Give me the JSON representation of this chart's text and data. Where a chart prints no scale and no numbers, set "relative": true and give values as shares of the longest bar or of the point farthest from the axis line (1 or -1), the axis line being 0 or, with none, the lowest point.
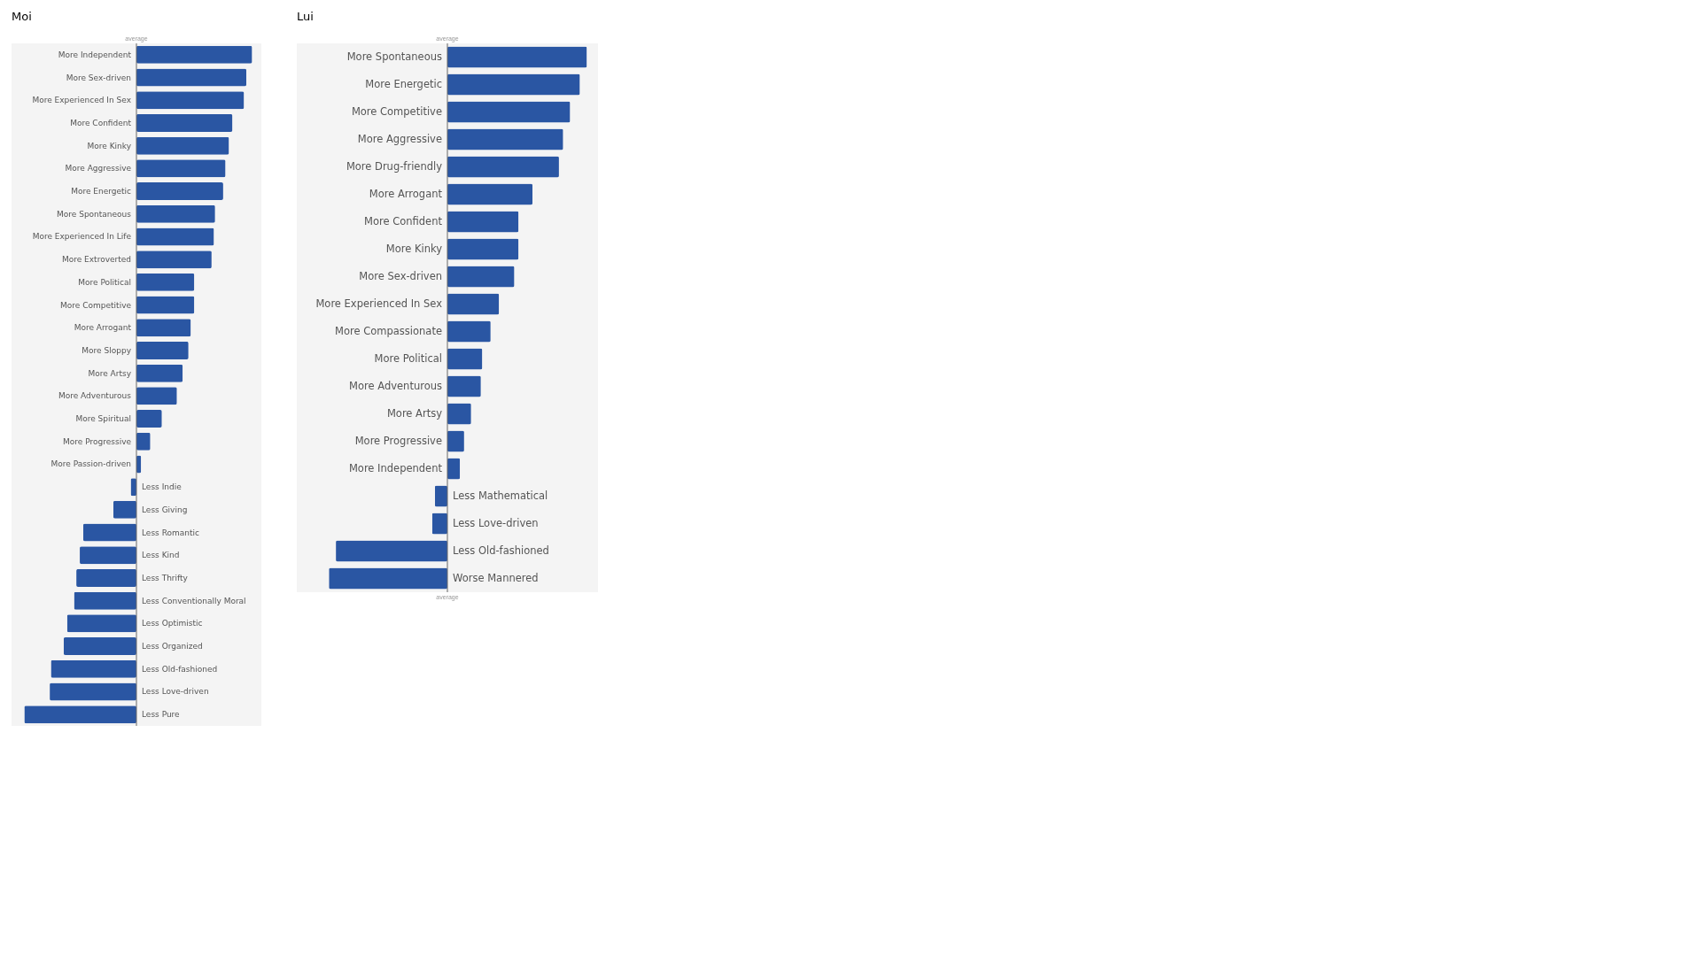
{
  "chart_data": [
    {
      "type": "bar",
      "orientation": "horizontal",
      "relative": true,
      "title": "Moi",
      "annotations": [
        "average"
      ],
      "categories": [
        "More Independent",
        "More Sex-driven",
        "More Experienced In Sex",
        "More Confident",
        "More Kinky",
        "More Aggressive",
        "More Energetic",
        "More Spontaneous",
        "More Experienced In Life",
        "More Extroverted",
        "More Political",
        "More Competitive",
        "More Arrogant",
        "More Sloppy",
        "More Artsy",
        "More Adventurous",
        "More Spiritual",
        "More Progressive",
        "More Passion-driven",
        "Less Indie",
        "Less Giving",
        "Less Romantic",
        "Less Kind",
        "Less Thrifty",
        "Less Conventionally Moral",
        "Less Optimistic",
        "Less Organized",
        "Less Old-fashioned",
        "Less Love-driven",
        "Less Pure"
      ],
      "series": [
        {
          "color": "#2a56a3",
          "values": [
            1,
            0.95,
            0.93,
            0.83,
            0.8,
            0.77,
            0.75,
            0.68,
            0.67,
            0.65,
            0.5,
            0.5,
            0.47,
            0.45,
            0.4,
            0.35,
            0.22,
            0.12,
            0.04,
            -0.05,
            -0.2,
            -0.46,
            -0.49,
            -0.52,
            -0.54,
            -0.6,
            -0.63,
            -0.74,
            -0.75,
            -0.97
          ]
        }
      ]
    },
    {
      "type": "bar",
      "orientation": "horizontal",
      "relative": true,
      "title": "Lui",
      "annotations": [
        "average",
        "average"
      ],
      "categories": [
        "More Spontaneous",
        "More Energetic",
        "More Competitive",
        "More Aggressive",
        "More Drug-friendly",
        "More Arrogant",
        "More Confident",
        "More Kinky",
        "More Sex-driven",
        "More Experienced In Sex",
        "More Compassionate",
        "More Political",
        "More Adventurous",
        "More Artsy",
        "More Progressive",
        "More Independent",
        "Less Mathematical",
        "Less Love-driven",
        "Less Old-fashioned",
        "Worse Mannered"
      ],
      "series": [
        {
          "color": "#2a56a3",
          "values": [
            1,
            0.95,
            0.88,
            0.83,
            0.8,
            0.61,
            0.51,
            0.51,
            0.48,
            0.37,
            0.31,
            0.25,
            0.24,
            0.17,
            0.12,
            0.09,
            -0.09,
            -0.11,
            -0.8,
            -0.85
          ]
        }
      ]
    }
  ]
}
